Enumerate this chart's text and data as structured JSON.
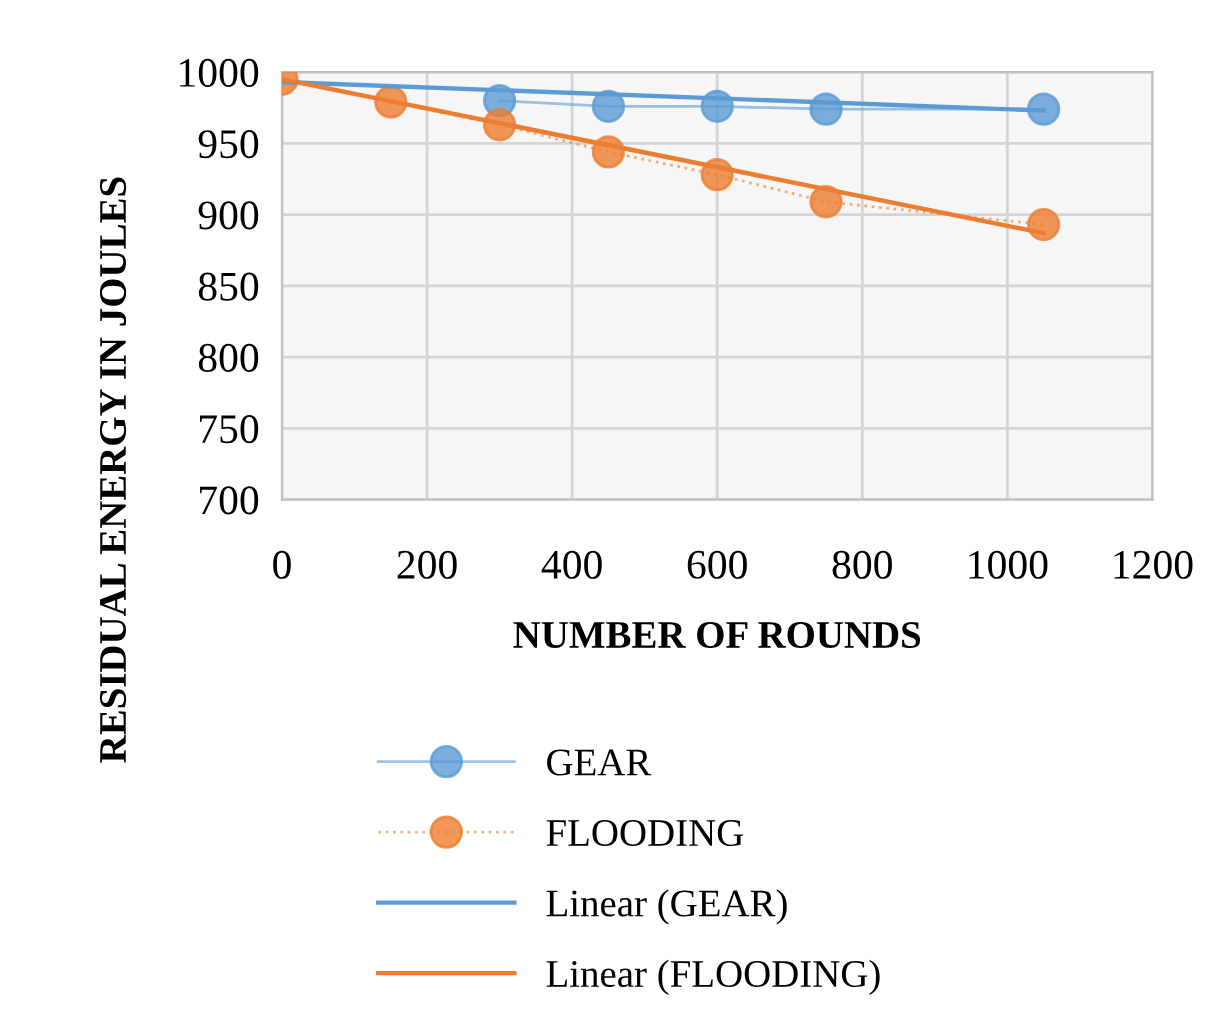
{
  "chart_data": {
    "type": "line",
    "xlabel": "NUMBER OF ROUNDS",
    "ylabel": "RESIDUAL ENERGY IN JOULES",
    "xlim": [
      0,
      1200
    ],
    "xticks": [
      0,
      200,
      400,
      600,
      800,
      1000,
      1200
    ],
    "ylim": [
      700,
      1000
    ],
    "yticks": [
      700,
      750,
      800,
      850,
      900,
      950,
      1000
    ],
    "grid": true,
    "legend": "bottom",
    "series": [
      {
        "name": "GEAR",
        "color": "#5b9bd5",
        "marker": "circle",
        "line_style": "solid",
        "x": [
          300,
          450,
          600,
          750,
          1050
        ],
        "values": [
          980,
          976,
          976,
          974,
          974
        ]
      },
      {
        "name": "FLOODING",
        "color": "#ed7d31",
        "marker": "circle",
        "line_style": "dotted",
        "x": [
          0,
          150,
          300,
          450,
          600,
          750,
          1050
        ],
        "values": [
          995,
          979,
          963,
          944,
          928,
          909,
          893
        ]
      },
      {
        "name": "Linear (GEAR)",
        "color": "#5b9bd5",
        "marker": "none",
        "line_style": "solid",
        "x": [
          0,
          1050
        ],
        "values": [
          993,
          973
        ]
      },
      {
        "name": "Linear (FLOODING)",
        "color": "#ed7d31",
        "marker": "none",
        "line_style": "solid",
        "x": [
          0,
          1050
        ],
        "values": [
          995,
          887
        ]
      }
    ]
  }
}
